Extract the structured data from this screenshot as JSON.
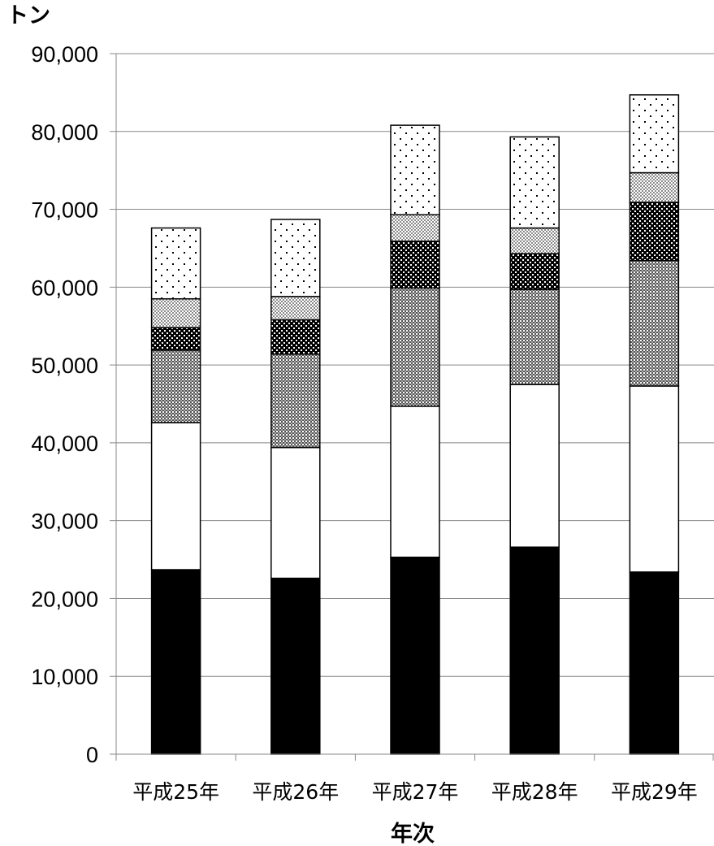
{
  "chart_data": {
    "type": "bar",
    "stacked": true,
    "title": "",
    "ylabel": "トン",
    "xlabel": "年次",
    "ylim": [
      0,
      90000
    ],
    "y_ticks": [
      "0",
      "10,000",
      "20,000",
      "30,000",
      "40,000",
      "50,000",
      "60,000",
      "70,000",
      "80,000",
      "90,000"
    ],
    "y_tick_values": [
      0,
      10000,
      20000,
      30000,
      40000,
      50000,
      60000,
      70000,
      80000,
      90000
    ],
    "grid": true,
    "legend": "none",
    "categories": [
      "平成25年",
      "平成26年",
      "平成27年",
      "平成28年",
      "平成29年"
    ],
    "series": [
      {
        "pattern": "solid-black",
        "values": [
          23700,
          22600,
          25300,
          26600,
          23400
        ]
      },
      {
        "pattern": "white",
        "values": [
          18900,
          16800,
          19400,
          20900,
          23900
        ]
      },
      {
        "pattern": "fine-gray-check",
        "values": [
          9300,
          12000,
          15200,
          12200,
          16100
        ]
      },
      {
        "pattern": "dark-dots",
        "values": [
          2900,
          4400,
          6000,
          4600,
          7500
        ]
      },
      {
        "pattern": "light-gray-check",
        "values": [
          3700,
          3000,
          3400,
          3300,
          3800
        ]
      },
      {
        "pattern": "sparse-dots",
        "values": [
          9100,
          9900,
          11500,
          11700,
          10000
        ]
      }
    ],
    "colors": {
      "black": "#000000",
      "white": "#ffffff",
      "grid": "#888888",
      "axis": "#888888"
    }
  }
}
